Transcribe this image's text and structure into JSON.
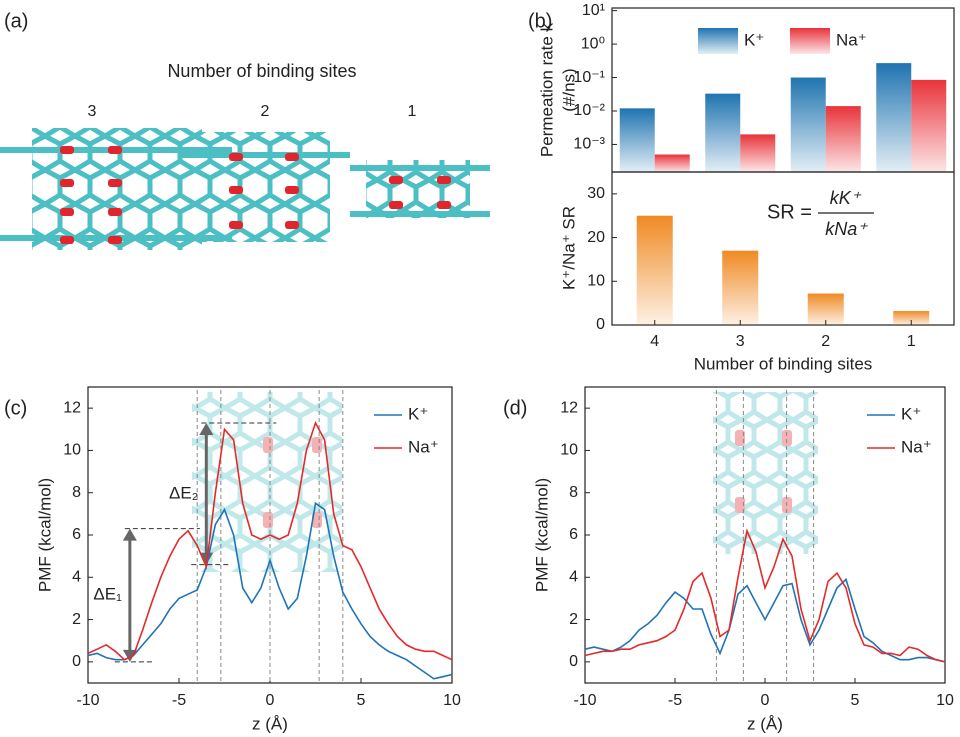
{
  "panel_a": {
    "label": "(a)",
    "title": "Number of binding sites",
    "tube_labels": [
      "3",
      "2",
      "1"
    ]
  },
  "chart_data": [
    {
      "type": "bar",
      "panel_label": "(b)",
      "ylabel": [
        "Permeation rate k",
        "(#/ns)"
      ],
      "log_scale": true,
      "ylim": [
        0.00015,
        12
      ],
      "yticks": [
        {
          "value": 0.001,
          "label": "10⁻³"
        },
        {
          "value": 0.01,
          "label": "10⁻²"
        },
        {
          "value": 0.1,
          "label": "10⁻¹"
        },
        {
          "value": 1,
          "label": "10⁰"
        },
        {
          "value": 10,
          "label": "10¹"
        }
      ],
      "legend": "upper center",
      "series": [
        {
          "name": "K⁺",
          "color": "#1f74b0",
          "values": [
            0.012,
            0.033,
            0.1,
            0.27
          ]
        },
        {
          "name": "Na⁺",
          "color": "#e8333a",
          "values": [
            0.0005,
            0.002,
            0.014,
            0.085
          ]
        }
      ]
    },
    {
      "type": "bar",
      "categories": [
        "4",
        "3",
        "2",
        "1"
      ],
      "xlabel": "Number of binding sites",
      "ylabel": "K⁺/Na⁺ SR",
      "ylim": [
        0,
        35
      ],
      "yticks": [
        0,
        10,
        20,
        30
      ],
      "values": [
        25,
        17,
        7.2,
        3.2
      ],
      "color": "#f08a24",
      "formula": {
        "lhs": "SR =",
        "numerator": "kK⁺",
        "denominator": "kNa⁺"
      }
    },
    {
      "type": "line",
      "panel_label": "(c)",
      "xlabel": "z (Å)",
      "ylabel": "PMF (kcal/mol)",
      "xlim": [
        -10,
        10
      ],
      "xticks": [
        -10,
        -5,
        0,
        5,
        10
      ],
      "ylim": [
        -1,
        13
      ],
      "yticks": [
        0,
        2,
        4,
        6,
        8,
        10,
        12
      ],
      "legend": "upper right",
      "vlines": [
        -4,
        -2.7,
        0,
        2.7,
        4
      ],
      "annotations": [
        {
          "text": "ΔE₁",
          "x": -7.7,
          "y0": 0,
          "y1": 6.3
        },
        {
          "text": "ΔE₂",
          "x": -3.5,
          "y0": 4.6,
          "y1": 11.3
        }
      ],
      "x": [
        -10,
        -9.5,
        -9,
        -8.5,
        -8,
        -7.5,
        -7,
        -6.5,
        -6,
        -5.5,
        -5,
        -4.5,
        -4,
        -3.5,
        -3,
        -2.5,
        -2,
        -1.5,
        -1,
        -0.5,
        0,
        0.5,
        1,
        1.5,
        2,
        2.5,
        3,
        3.5,
        4,
        4.5,
        5,
        5.5,
        6,
        6.5,
        7,
        7.5,
        8,
        8.5,
        9,
        9.5,
        10
      ],
      "series": [
        {
          "name": "K⁺",
          "color": "#1f74b8",
          "values": [
            0.3,
            0.4,
            0.2,
            0.1,
            0.1,
            0.3,
            0.8,
            1.3,
            1.8,
            2.5,
            3.0,
            3.2,
            3.4,
            4.5,
            6.5,
            7.2,
            6.0,
            3.5,
            2.8,
            3.5,
            4.8,
            3.5,
            2.5,
            3.0,
            5.0,
            7.5,
            7.2,
            5.0,
            3.3,
            2.5,
            1.8,
            1.2,
            0.8,
            0.5,
            0.3,
            0.1,
            -0.2,
            -0.5,
            -0.8,
            -0.7,
            -0.6
          ]
        },
        {
          "name": "Na⁺",
          "color": "#e42a2a",
          "values": [
            0.4,
            0.6,
            0.8,
            0.5,
            0.1,
            0.3,
            1.5,
            2.8,
            4.0,
            5.0,
            5.8,
            6.2,
            5.5,
            4.5,
            8.0,
            11.0,
            10.5,
            7.5,
            6.0,
            5.8,
            6.0,
            5.8,
            6.0,
            7.5,
            10.0,
            11.3,
            10.5,
            7.0,
            5.5,
            5.3,
            4.5,
            3.5,
            2.5,
            1.8,
            1.2,
            0.8,
            0.6,
            0.5,
            0.5,
            0.3,
            0.1
          ]
        }
      ]
    },
    {
      "type": "line",
      "panel_label": "(d)",
      "xlabel": "z (Å)",
      "ylabel": "PMF (kcal/mol)",
      "xlim": [
        -10,
        10
      ],
      "xticks": [
        -10,
        -5,
        0,
        5,
        10
      ],
      "ylim": [
        -1,
        13
      ],
      "yticks": [
        0,
        2,
        4,
        6,
        8,
        10,
        12
      ],
      "legend": "upper right",
      "vlines": [
        -2.7,
        -1.2,
        1.2,
        2.7
      ],
      "x": [
        -10,
        -9.5,
        -9,
        -8.5,
        -8,
        -7.5,
        -7,
        -6.5,
        -6,
        -5.5,
        -5,
        -4.5,
        -4,
        -3.5,
        -3,
        -2.5,
        -2,
        -1.5,
        -1,
        -0.5,
        0,
        0.5,
        1,
        1.5,
        2,
        2.5,
        3,
        3.5,
        4,
        4.5,
        5,
        5.5,
        6,
        6.5,
        7,
        7.5,
        8,
        8.5,
        9,
        9.5,
        10
      ],
      "series": [
        {
          "name": "K⁺",
          "color": "#1f74b8",
          "values": [
            0.6,
            0.7,
            0.6,
            0.5,
            0.7,
            1.0,
            1.5,
            1.8,
            2.2,
            2.8,
            3.3,
            3.0,
            2.5,
            2.5,
            1.3,
            0.4,
            1.5,
            3.2,
            3.6,
            2.8,
            2.0,
            2.8,
            3.6,
            3.7,
            2.0,
            0.8,
            1.5,
            2.5,
            3.5,
            3.9,
            2.5,
            1.2,
            0.9,
            0.5,
            0.3,
            0.1,
            0.1,
            0.2,
            0.2,
            0.1,
            0.0
          ]
        },
        {
          "name": "Na⁺",
          "color": "#e42a2a",
          "values": [
            0.3,
            0.4,
            0.5,
            0.5,
            0.6,
            0.6,
            0.8,
            0.9,
            1.0,
            1.2,
            1.5,
            2.5,
            3.8,
            4.2,
            3.0,
            1.2,
            1.5,
            4.0,
            6.2,
            5.2,
            3.5,
            4.5,
            5.8,
            5.0,
            2.5,
            1.0,
            2.0,
            3.8,
            4.2,
            3.5,
            1.8,
            0.8,
            0.7,
            0.4,
            0.4,
            0.3,
            0.7,
            0.6,
            0.3,
            0.1,
            0.0
          ]
        }
      ]
    }
  ]
}
